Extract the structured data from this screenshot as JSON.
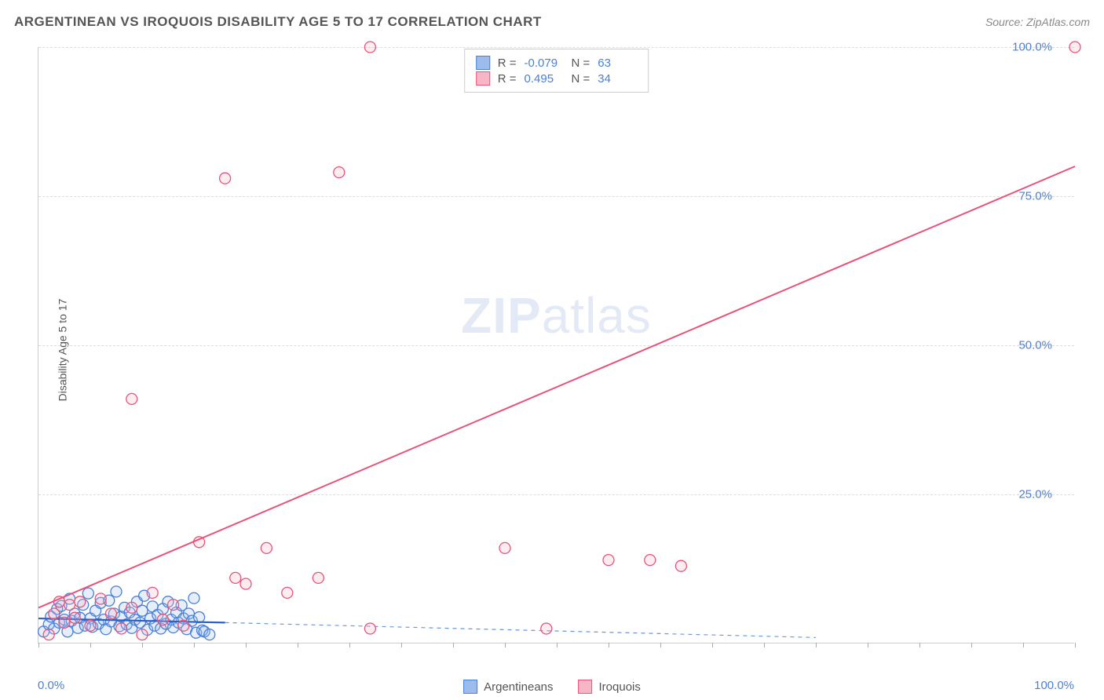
{
  "title": "ARGENTINEAN VS IROQUOIS DISABILITY AGE 5 TO 17 CORRELATION CHART",
  "source": "Source: ZipAtlas.com",
  "watermark_zip": "ZIP",
  "watermark_atlas": "atlas",
  "ylabel": "Disability Age 5 to 17",
  "chart": {
    "type": "scatter",
    "xlim": [
      0,
      100
    ],
    "ylim": [
      0,
      100
    ],
    "xticks_minor_step": 5,
    "yticks": [
      25,
      50,
      75,
      100
    ],
    "ytick_labels": [
      "25.0%",
      "50.0%",
      "75.0%",
      "100.0%"
    ],
    "x_first_label": "0.0%",
    "x_last_label": "100.0%",
    "grid_color": "#dddddd",
    "axis_color": "#cccccc",
    "label_color": "#4a7fd8",
    "background_color": "#ffffff",
    "marker_radius": 7,
    "marker_fill_opacity": 0.25,
    "marker_stroke_width": 1.3,
    "series": [
      {
        "name": "Argentineans",
        "color_stroke": "#4a7fd8",
        "color_fill": "#9bbcec",
        "R": "-0.079",
        "N": "63",
        "trend": {
          "x1": 0,
          "y1": 4.2,
          "x2": 18,
          "y2": 3.5,
          "color": "#2b5fc4",
          "width": 2.2,
          "dash": "none"
        },
        "trend_ext": {
          "x1": 18,
          "y1": 3.5,
          "x2": 75,
          "y2": 1.0,
          "color": "#6a96d8",
          "width": 1.2,
          "dash": "5,5"
        },
        "points": [
          [
            0.5,
            2
          ],
          [
            1,
            3.2
          ],
          [
            1.2,
            4.5
          ],
          [
            1.5,
            2.5
          ],
          [
            1.8,
            5.8
          ],
          [
            2,
            3.5
          ],
          [
            2.2,
            6.3
          ],
          [
            2.5,
            4.0
          ],
          [
            2.8,
            2.0
          ],
          [
            3,
            7.5
          ],
          [
            3.2,
            3.8
          ],
          [
            3.5,
            5.0
          ],
          [
            3.8,
            2.6
          ],
          [
            4,
            4.3
          ],
          [
            4.3,
            6.5
          ],
          [
            4.5,
            3.0
          ],
          [
            4.8,
            8.4
          ],
          [
            5,
            4.2
          ],
          [
            5.2,
            2.8
          ],
          [
            5.5,
            5.5
          ],
          [
            5.8,
            3.3
          ],
          [
            6,
            6.8
          ],
          [
            6.3,
            4.0
          ],
          [
            6.5,
            2.4
          ],
          [
            6.8,
            7.2
          ],
          [
            7,
            3.7
          ],
          [
            7.3,
            5.0
          ],
          [
            7.5,
            8.7
          ],
          [
            7.8,
            2.9
          ],
          [
            8,
            4.5
          ],
          [
            8.3,
            6.0
          ],
          [
            8.5,
            3.2
          ],
          [
            8.8,
            5.2
          ],
          [
            9,
            2.6
          ],
          [
            9.3,
            4.0
          ],
          [
            9.5,
            7.0
          ],
          [
            9.8,
            3.5
          ],
          [
            10,
            5.5
          ],
          [
            10.2,
            8.0
          ],
          [
            10.5,
            2.3
          ],
          [
            10.8,
            4.2
          ],
          [
            11,
            6.2
          ],
          [
            11.2,
            3.0
          ],
          [
            11.5,
            4.8
          ],
          [
            11.8,
            2.5
          ],
          [
            12,
            5.8
          ],
          [
            12.3,
            3.3
          ],
          [
            12.5,
            7.0
          ],
          [
            12.8,
            4.0
          ],
          [
            13,
            2.7
          ],
          [
            13.3,
            5.2
          ],
          [
            13.5,
            3.5
          ],
          [
            13.8,
            6.4
          ],
          [
            14,
            4.2
          ],
          [
            14.3,
            2.4
          ],
          [
            14.5,
            5.0
          ],
          [
            14.8,
            3.8
          ],
          [
            15,
            7.6
          ],
          [
            15.2,
            1.8
          ],
          [
            15.5,
            4.4
          ],
          [
            15.8,
            2.2
          ],
          [
            16,
            2.0
          ],
          [
            16.5,
            1.5
          ]
        ]
      },
      {
        "name": "Iroquois",
        "color_stroke": "#e8537a",
        "color_fill": "#f6b6c8",
        "R": "0.495",
        "N": "34",
        "trend": {
          "x1": 0,
          "y1": 6.0,
          "x2": 100,
          "y2": 80.0,
          "color": "#e8537a",
          "width": 2.0,
          "dash": "none"
        },
        "points": [
          [
            1,
            1.5
          ],
          [
            1.5,
            5
          ],
          [
            2,
            7
          ],
          [
            2.5,
            3.5
          ],
          [
            3,
            6.5
          ],
          [
            3.5,
            4.3
          ],
          [
            4,
            7
          ],
          [
            5,
            3
          ],
          [
            6,
            7.5
          ],
          [
            7,
            5
          ],
          [
            8,
            2.5
          ],
          [
            9,
            6
          ],
          [
            10,
            1.5
          ],
          [
            11,
            8.5
          ],
          [
            12,
            4
          ],
          [
            13,
            6.5
          ],
          [
            14,
            3
          ],
          [
            15.5,
            17
          ],
          [
            9,
            41
          ],
          [
            18,
            78
          ],
          [
            19,
            11
          ],
          [
            20,
            10
          ],
          [
            22,
            16
          ],
          [
            24,
            8.5
          ],
          [
            27,
            11
          ],
          [
            29,
            79
          ],
          [
            32,
            100
          ],
          [
            32,
            2.5
          ],
          [
            45,
            16
          ],
          [
            49,
            2.5
          ],
          [
            55,
            14
          ],
          [
            59,
            14
          ],
          [
            62,
            13
          ],
          [
            100,
            100
          ]
        ]
      }
    ]
  },
  "legend": {
    "items": [
      {
        "label": "Argentineans",
        "stroke": "#4a7fd8",
        "fill": "#9bbcec"
      },
      {
        "label": "Iroquois",
        "stroke": "#e8537a",
        "fill": "#f6b6c8"
      }
    ]
  }
}
